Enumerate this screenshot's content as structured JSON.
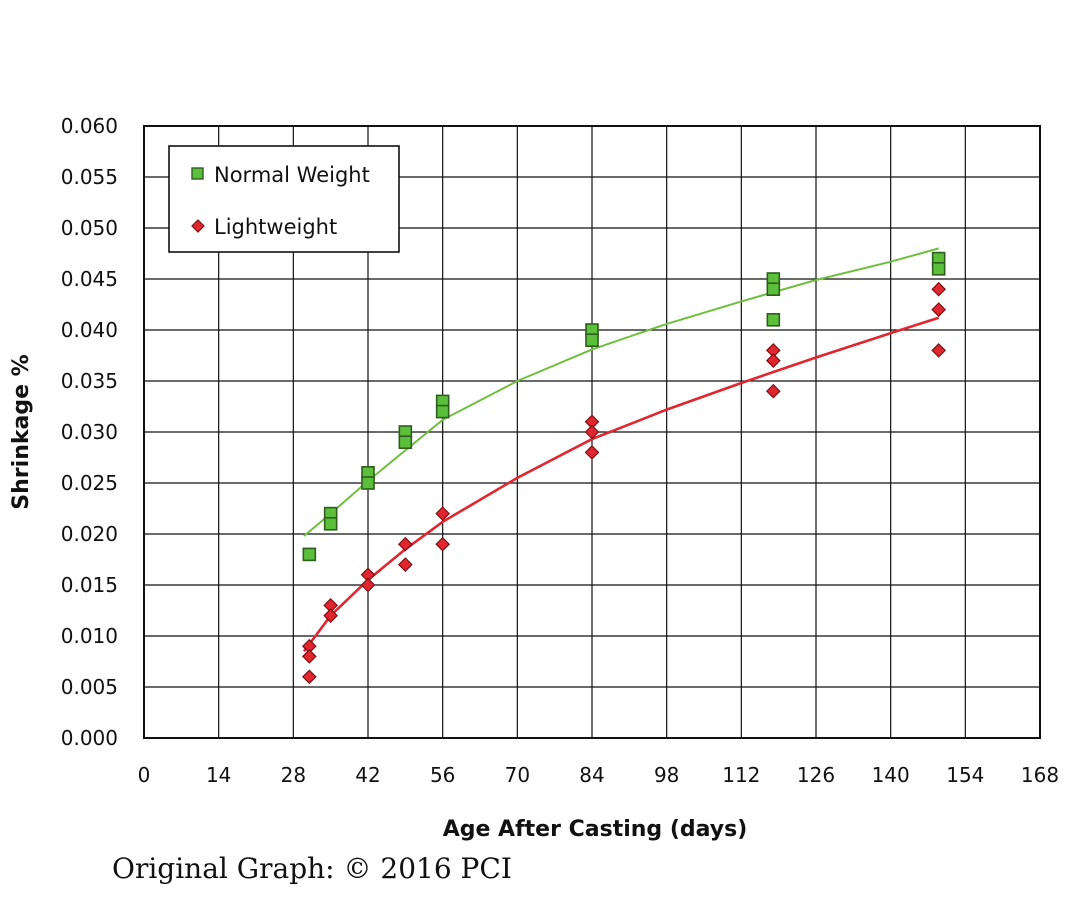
{
  "credit": "Original Graph: © 2016 PCI",
  "colors": {
    "normal_fill": "#5cbf3c",
    "normal_edge": "#2d5e1c",
    "normal_line": "#6fbf3f",
    "light_fill": "#e0262f",
    "light_edge": "#7a1216",
    "light_line": "#e0262f",
    "grid": "#111111"
  },
  "chart_data": {
    "type": "scatter",
    "title": "",
    "xlabel": "Age After Casting (days)",
    "ylabel": "Shrinkage %",
    "xlim": [
      0,
      168
    ],
    "ylim": [
      0,
      0.06
    ],
    "x_ticks": [
      "0",
      "14",
      "28",
      "42",
      "56",
      "70",
      "84",
      "98",
      "112",
      "126",
      "140",
      "154",
      "168"
    ],
    "y_ticks": [
      "0.000",
      "0.005",
      "0.010",
      "0.015",
      "0.020",
      "0.025",
      "0.030",
      "0.035",
      "0.040",
      "0.045",
      "0.050",
      "0.055",
      "0.060"
    ],
    "grid": true,
    "legend": "top-left",
    "series": [
      {
        "name": "Normal Weight",
        "marker": "square",
        "points": [
          [
            31,
            0.018
          ],
          [
            35,
            0.022
          ],
          [
            35,
            0.021
          ],
          [
            42,
            0.026
          ],
          [
            42,
            0.025
          ],
          [
            49,
            0.03
          ],
          [
            49,
            0.029
          ],
          [
            56,
            0.033
          ],
          [
            56,
            0.032
          ],
          [
            84,
            0.04
          ],
          [
            84,
            0.039
          ],
          [
            118,
            0.045
          ],
          [
            118,
            0.044
          ],
          [
            118,
            0.041
          ],
          [
            149,
            0.047
          ],
          [
            149,
            0.046
          ]
        ],
        "trend": [
          [
            30,
            0.0198
          ],
          [
            35,
            0.022
          ],
          [
            42,
            0.0252
          ],
          [
            49,
            0.0282
          ],
          [
            56,
            0.0312
          ],
          [
            70,
            0.035
          ],
          [
            84,
            0.0381
          ],
          [
            98,
            0.0406
          ],
          [
            112,
            0.0428
          ],
          [
            126,
            0.0449
          ],
          [
            140,
            0.0467
          ],
          [
            149,
            0.048
          ]
        ]
      },
      {
        "name": "Lightweight",
        "marker": "diamond",
        "points": [
          [
            31,
            0.009
          ],
          [
            31,
            0.008
          ],
          [
            31,
            0.006
          ],
          [
            35,
            0.013
          ],
          [
            35,
            0.012
          ],
          [
            42,
            0.016
          ],
          [
            42,
            0.015
          ],
          [
            49,
            0.019
          ],
          [
            49,
            0.017
          ],
          [
            56,
            0.022
          ],
          [
            56,
            0.019
          ],
          [
            84,
            0.031
          ],
          [
            84,
            0.03
          ],
          [
            84,
            0.028
          ],
          [
            118,
            0.038
          ],
          [
            118,
            0.037
          ],
          [
            118,
            0.034
          ],
          [
            149,
            0.044
          ],
          [
            149,
            0.042
          ],
          [
            149,
            0.038
          ]
        ],
        "trend": [
          [
            30,
            0.0085
          ],
          [
            35,
            0.012
          ],
          [
            42,
            0.0155
          ],
          [
            49,
            0.0185
          ],
          [
            56,
            0.0212
          ],
          [
            70,
            0.0255
          ],
          [
            84,
            0.0293
          ],
          [
            98,
            0.0322
          ],
          [
            112,
            0.0348
          ],
          [
            126,
            0.0373
          ],
          [
            140,
            0.0397
          ],
          [
            149,
            0.0412
          ]
        ]
      }
    ]
  }
}
